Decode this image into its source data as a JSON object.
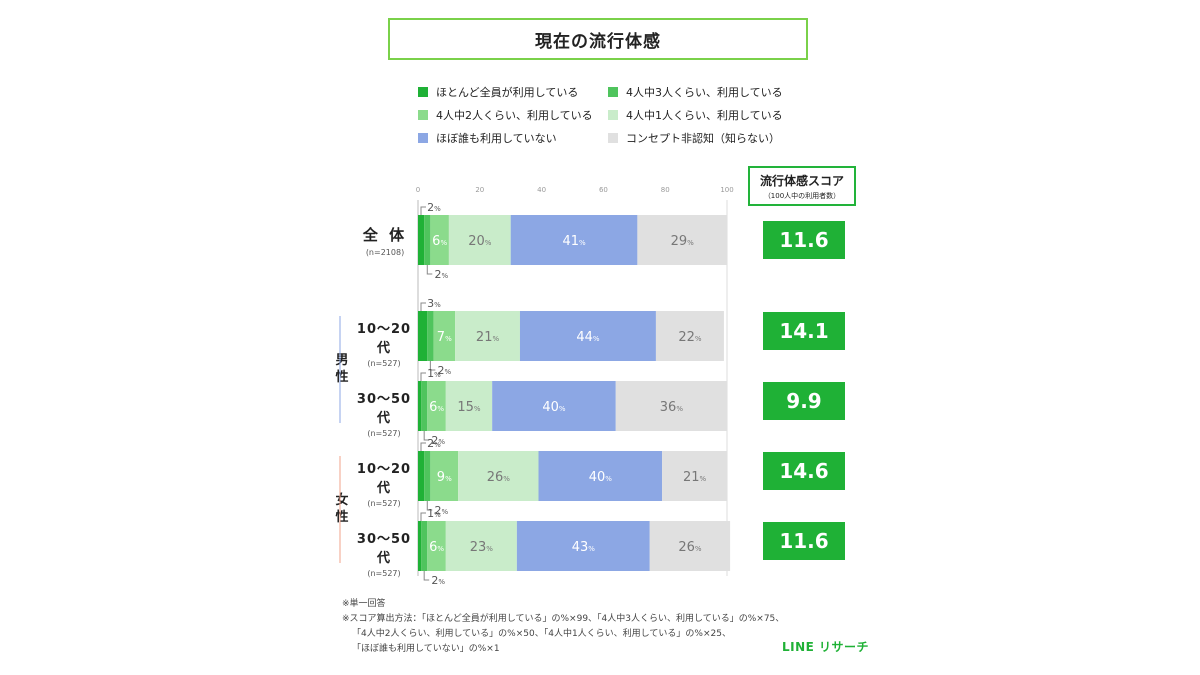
{
  "title": "現在の流行体感",
  "legend": [
    {
      "label": "ほとんど全員が利用している",
      "color": "#1fb136"
    },
    {
      "label": "4人中3人くらい、利用している",
      "color": "#4fc45d"
    },
    {
      "label": "4人中2人くらい、利用している",
      "color": "#8bdb8c"
    },
    {
      "label": "4人中1人くらい、利用している",
      "color": "#c9ecca"
    },
    {
      "label": "ほぼ誰も利用していない",
      "color": "#8ca7e4"
    },
    {
      "label": "コンセプト非認知（知らない）",
      "color": "#e0e0e0"
    }
  ],
  "score_header": {
    "title": "流行体感スコア",
    "subtitle": "（100人中の利用者数）"
  },
  "groups": {
    "male": "男性",
    "female": "女性"
  },
  "rows": [
    {
      "label": "全 体",
      "n": "(n=2108)"
    },
    {
      "label": "10〜20代",
      "n": "(n=527)"
    },
    {
      "label": "30〜50代",
      "n": "(n=527)"
    },
    {
      "label": "10〜20代",
      "n": "(n=527)"
    },
    {
      "label": "30〜50代",
      "n": "(n=527)"
    }
  ],
  "scores": [
    "11.6",
    "14.1",
    "9.9",
    "14.6",
    "11.6"
  ],
  "unit": "%",
  "chart_data": {
    "type": "bar",
    "orientation": "horizontal",
    "stacked": true,
    "x_ticks": [
      "0",
      "20",
      "40",
      "60",
      "80",
      "100"
    ],
    "xlim": [
      0,
      100
    ],
    "categories": [
      "全 体",
      "男性 10〜20代",
      "男性 30〜50代",
      "女性 10〜20代",
      "女性 30〜50代"
    ],
    "series": [
      {
        "name": "ほとんど全員が利用している",
        "values": [
          2,
          3,
          1,
          2,
          1
        ],
        "color": "#1fb136"
      },
      {
        "name": "4人中3人くらい、利用している",
        "values": [
          2,
          2,
          2,
          2,
          2
        ],
        "color": "#4fc45d"
      },
      {
        "name": "4人中2人くらい、利用している",
        "values": [
          6,
          7,
          6,
          9,
          6
        ],
        "color": "#8bdb8c"
      },
      {
        "name": "4人中1人くらい、利用している",
        "values": [
          20,
          21,
          15,
          26,
          23
        ],
        "color": "#c9ecca"
      },
      {
        "name": "ほぼ誰も利用していない",
        "values": [
          41,
          44,
          40,
          40,
          43
        ],
        "color": "#8ca7e4"
      },
      {
        "name": "コンセプト非認知（知らない）",
        "values": [
          29,
          22,
          36,
          21,
          26
        ],
        "color": "#e0e0e0"
      }
    ]
  },
  "footnotes": [
    "※単一回答",
    "※スコア算出方法：「ほとんど全員が利用している」の%×99、「4人中3人くらい、利用している」の%×75、",
    "「4人中2人くらい、利用している」の%×50、「4人中1人くらい、利用している」の%×25、",
    "「ほぼ誰も利用していない」の%×1"
  ],
  "brand": "LINE リサーチ"
}
